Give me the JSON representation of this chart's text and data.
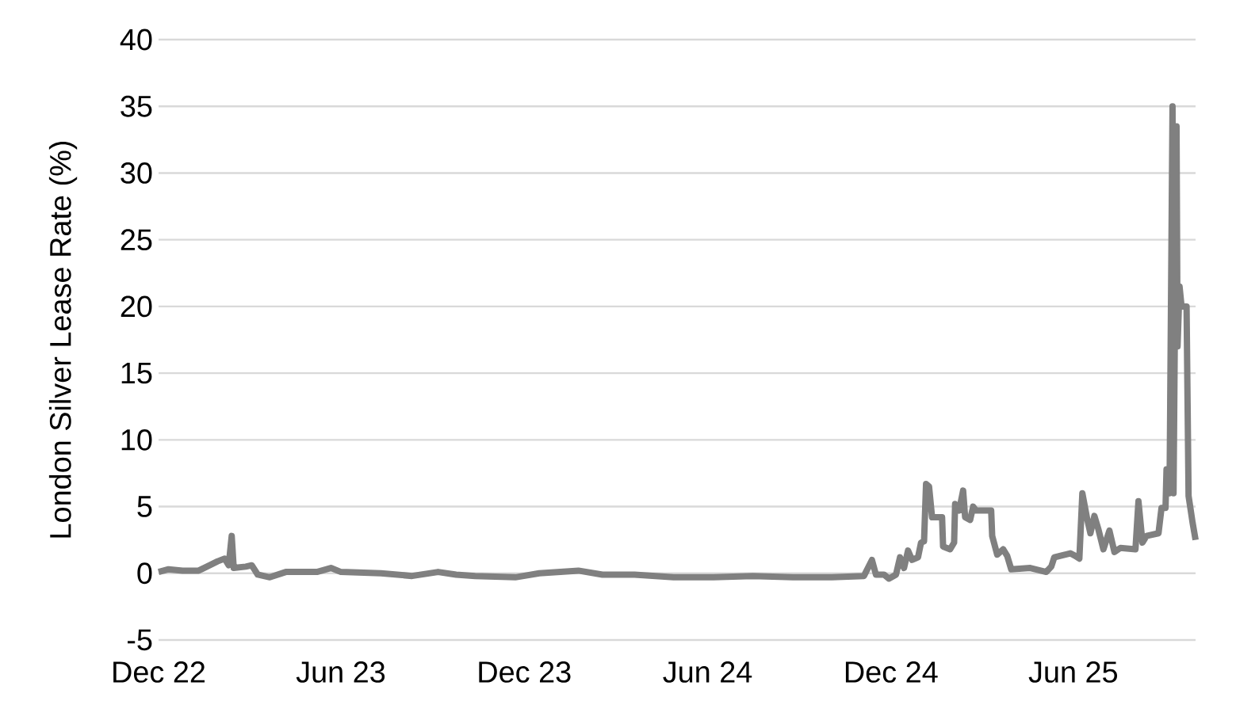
{
  "chart_data": {
    "type": "line",
    "ylabel": "London Silver Lease Rate (%)",
    "x": [
      "2022-12-01",
      "2022-12-11",
      "2022-12-25",
      "2023-01-10",
      "2023-01-21",
      "2023-01-29",
      "2023-02-05",
      "2023-02-09",
      "2023-02-12",
      "2023-02-14",
      "2023-02-26",
      "2023-03-04",
      "2023-03-10",
      "2023-03-22",
      "2023-04-07",
      "2023-05-08",
      "2023-05-22",
      "2023-06-01",
      "2023-07-11",
      "2023-08-11",
      "2023-09-06",
      "2023-09-24",
      "2023-10-13",
      "2023-11-22",
      "2023-12-16",
      "2024-01-24",
      "2024-02-17",
      "2024-03-20",
      "2024-04-28",
      "2024-06-07",
      "2024-07-16",
      "2024-08-25",
      "2024-10-03",
      "2024-11-04",
      "2024-11-12",
      "2024-11-16",
      "2024-11-24",
      "2024-11-29",
      "2024-12-06",
      "2024-12-10",
      "2024-12-14",
      "2024-12-18",
      "2024-12-22",
      "2024-12-28",
      "2024-12-31",
      "2025-01-03",
      "2025-01-05",
      "2025-01-08",
      "2025-01-11",
      "2025-01-21",
      "2025-01-22",
      "2025-01-29",
      "2025-02-02",
      "2025-02-03",
      "2025-02-07",
      "2025-02-11",
      "2025-02-13",
      "2025-02-18",
      "2025-02-21",
      "2025-02-24",
      "2025-03-11",
      "2025-03-12",
      "2025-03-17",
      "2025-03-23",
      "2025-03-27",
      "2025-03-31",
      "2025-04-19",
      "2025-05-05",
      "2025-05-10",
      "2025-05-13",
      "2025-05-29",
      "2025-06-03",
      "2025-06-07",
      "2025-06-10",
      "2025-06-15",
      "2025-06-18",
      "2025-06-22",
      "2025-06-26",
      "2025-07-01",
      "2025-07-07",
      "2025-07-12",
      "2025-07-18",
      "2025-08-02",
      "2025-08-05",
      "2025-08-09",
      "2025-08-13",
      "2025-08-25",
      "2025-08-28",
      "2025-09-01",
      "2025-09-02",
      "2025-09-05",
      "2025-09-08",
      "2025-09-09",
      "2025-09-12",
      "2025-09-13",
      "2025-09-15",
      "2025-09-17",
      "2025-09-22",
      "2025-09-24",
      "2025-09-28",
      "2025-10-01"
    ],
    "values": [
      0.1,
      0.3,
      0.2,
      0.2,
      0.6,
      0.9,
      1.1,
      0.6,
      2.8,
      0.4,
      0.5,
      0.6,
      -0.1,
      -0.3,
      0.1,
      0.1,
      0.4,
      0.1,
      0,
      -0.2,
      0.1,
      -0.1,
      -0.2,
      -0.3,
      0,
      0.2,
      -0.1,
      -0.1,
      -0.3,
      -0.3,
      -0.2,
      -0.3,
      -0.3,
      -0.2,
      1.0,
      -0.1,
      -0.1,
      -0.4,
      -0.1,
      1.2,
      0.4,
      1.7,
      1.0,
      1.2,
      2.3,
      2.4,
      6.7,
      6.5,
      4.2,
      4.2,
      2.0,
      1.8,
      2.3,
      5.2,
      4.7,
      6.2,
      4.2,
      4.0,
      5.0,
      4.7,
      4.7,
      2.8,
      1.4,
      1.8,
      1.3,
      0.3,
      0.4,
      0.1,
      0.5,
      1.2,
      1.5,
      1.3,
      1.1,
      6.0,
      4.0,
      3.0,
      4.3,
      3.3,
      1.8,
      3.2,
      1.6,
      1.9,
      1.8,
      5.4,
      2.3,
      2.8,
      3.0,
      4.9,
      4.9,
      7.8,
      6.0,
      35.0,
      6.0,
      33.5,
      17.0,
      21.5,
      20.0,
      20.0,
      5.8,
      3.8,
      2.5
    ],
    "color": "#808080",
    "line_style": "solid",
    "marker": "none",
    "grid": "y",
    "xlim": [
      "2022-12-01",
      "2025-10-01"
    ],
    "xticks": [
      {
        "value": "2022-12-01",
        "label": "Dec 22"
      },
      {
        "value": "2023-06-01",
        "label": "Jun 23"
      },
      {
        "value": "2023-12-01",
        "label": "Dec 23"
      },
      {
        "value": "2024-06-01",
        "label": "Jun 24"
      },
      {
        "value": "2024-12-01",
        "label": "Dec 24"
      },
      {
        "value": "2025-06-01",
        "label": "Jun 25"
      }
    ],
    "ylim": [
      -5,
      40
    ],
    "yticks": [
      -5,
      0,
      5,
      10,
      15,
      20,
      25,
      30,
      35,
      40
    ]
  }
}
